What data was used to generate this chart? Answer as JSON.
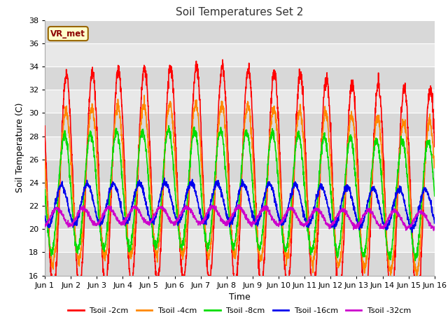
{
  "title": "Soil Temperatures Set 2",
  "xlabel": "Time",
  "ylabel": "Soil Temperature (C)",
  "ylim": [
    16,
    38
  ],
  "legend_labels": [
    "Tsoil -2cm",
    "Tsoil -4cm",
    "Tsoil -8cm",
    "Tsoil -16cm",
    "Tsoil -32cm"
  ],
  "colors": [
    "#ff0000",
    "#ff8800",
    "#00dd00",
    "#0000ee",
    "#cc00cc"
  ],
  "annotation_text": "VR_met",
  "annotation_bg": "#ffffcc",
  "annotation_border": "#996600",
  "figure_bg": "#ffffff",
  "plot_bg": "#e8e8e8",
  "band_color": "#d8d8d8",
  "grid_color": "#ffffff",
  "tick_labels": [
    "Jun 1",
    "Jun 2",
    "Jun 3",
    "Jun 4",
    "Jun 5",
    "Jun 6",
    "Jun 7",
    "Jun 8",
    "Jun 9",
    "Jun 10",
    "Jun 11",
    "Jun 12",
    "Jun 13",
    "Jun 14",
    "Jun 15",
    "Jun 16"
  ],
  "n_days": 15,
  "points_per_day": 144,
  "yticks": [
    16,
    18,
    20,
    22,
    24,
    26,
    28,
    30,
    32,
    34,
    36,
    38
  ]
}
